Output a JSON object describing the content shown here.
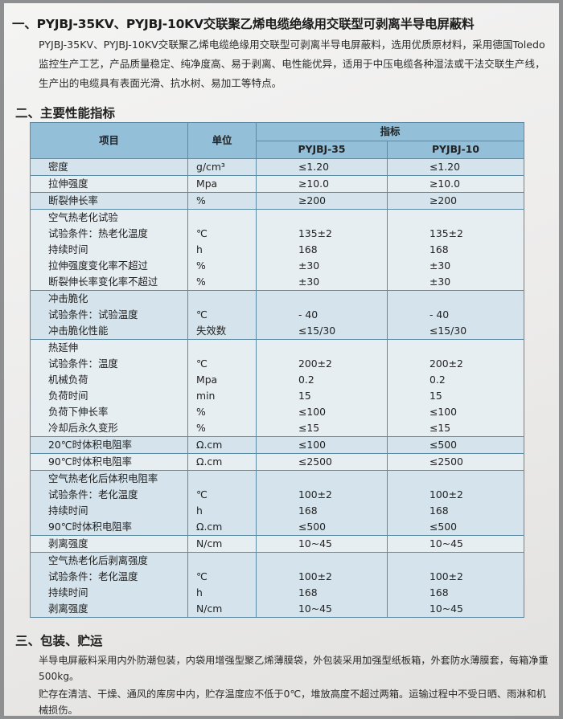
{
  "section1": {
    "title": "一、PYJBJ-35KV、PYJBJ-10KV交联聚乙烯电缆绝缘用交联型可剥离半导电屏蔽料",
    "paragraph": "PYJBJ-35KV、PYJBJ-10KV交联聚乙烯电缆绝缘用交联型可剥离半导电屏蔽料，选用优质原材料，采用德国Toledo监控生产工艺，产品质量稳定、纯净度高、易于剥离、电性能优异，适用于中压电缆各种湿法或干法交联生产线，生产出的电缆具有表面光滑、抗水树、易加工等特点。"
  },
  "section2": {
    "title": "二、主要性能指标",
    "table": {
      "headers": {
        "item": "项目",
        "unit": "单位",
        "index": "指标",
        "col1": "PYJBJ-35",
        "col2": "PYJBJ-10"
      },
      "rows": [
        {
          "item": [
            "密度"
          ],
          "unit": [
            "g/cm³"
          ],
          "c1": [
            "≤1.20"
          ],
          "c2": [
            "≤1.20"
          ]
        },
        {
          "item": [
            "拉伸强度"
          ],
          "unit": [
            "Mpa"
          ],
          "c1": [
            "≥10.0"
          ],
          "c2": [
            "≥10.0"
          ]
        },
        {
          "item": [
            "断裂伸长率"
          ],
          "unit": [
            "%"
          ],
          "c1": [
            "≥200"
          ],
          "c2": [
            "≥200"
          ]
        },
        {
          "item": [
            "空气热老化试验",
            "试验条件：热老化温度",
            "持续时间",
            "拉伸强度变化率不超过",
            "断裂伸长率变化率不超过"
          ],
          "unit": [
            "",
            "℃",
            "h",
            "%",
            "%"
          ],
          "c1": [
            "",
            "135±2",
            "168",
            "±30",
            "±30"
          ],
          "c2": [
            "",
            "135±2",
            "168",
            "±30",
            "±30"
          ]
        },
        {
          "item": [
            "冲击脆化",
            "试验条件：试验温度",
            "冲击脆化性能"
          ],
          "unit": [
            "",
            "℃",
            "失效数"
          ],
          "c1": [
            "",
            "- 40",
            "≤15/30"
          ],
          "c2": [
            "",
            "- 40",
            "≤15/30"
          ]
        },
        {
          "item": [
            "热延伸",
            "试验条件：温度",
            "机械负荷",
            "负荷时间",
            "负荷下伸长率",
            "冷却后永久变形"
          ],
          "unit": [
            "",
            "℃",
            "Mpa",
            "min",
            "%",
            "%"
          ],
          "c1": [
            "",
            "200±2",
            "0.2",
            "15",
            "≤100",
            "≤15"
          ],
          "c2": [
            "",
            "200±2",
            "0.2",
            "15",
            "≤100",
            "≤15"
          ]
        },
        {
          "item": [
            "20℃时体积电阻率"
          ],
          "unit": [
            "Ω.cm"
          ],
          "c1": [
            "≤100"
          ],
          "c2": [
            "≤500"
          ]
        },
        {
          "item": [
            "90℃时体积电阻率"
          ],
          "unit": [
            "Ω.cm"
          ],
          "c1": [
            "≤2500"
          ],
          "c2": [
            "≤2500"
          ]
        },
        {
          "item": [
            "空气热老化后体积电阻率",
            "试验条件：老化温度",
            "持续时间",
            "90℃时体积电阻率"
          ],
          "unit": [
            "",
            "℃",
            "h",
            "Ω.cm"
          ],
          "c1": [
            "",
            "100±2",
            "168",
            "≤500"
          ],
          "c2": [
            "",
            "100±2",
            "168",
            "≤500"
          ]
        },
        {
          "item": [
            "剥离强度"
          ],
          "unit": [
            "N/cm"
          ],
          "c1": [
            "10~45"
          ],
          "c2": [
            "10~45"
          ]
        },
        {
          "item": [
            "空气热老化后剥离强度",
            "试验条件：老化温度",
            "持续时间",
            "剥离强度"
          ],
          "unit": [
            "",
            "℃",
            "h",
            "N/cm"
          ],
          "c1": [
            "",
            "100±2",
            "168",
            "10~45"
          ],
          "c2": [
            "",
            "100±2",
            "168",
            "10~45"
          ]
        }
      ]
    }
  },
  "section3": {
    "title": "三、包装、贮运",
    "paragraph1": "半导电屏蔽料采用内外防潮包装，内袋用增强型聚乙烯薄膜袋，外包装采用加强型纸板箱，外套防水薄膜套，每箱净重500kg。",
    "paragraph2": "贮存在清洁、干燥、通风的库房中内，贮存温度应不低于0℃，堆放高度不超过两箱。运输过程中不受日晒、雨淋和机械损伤。"
  }
}
